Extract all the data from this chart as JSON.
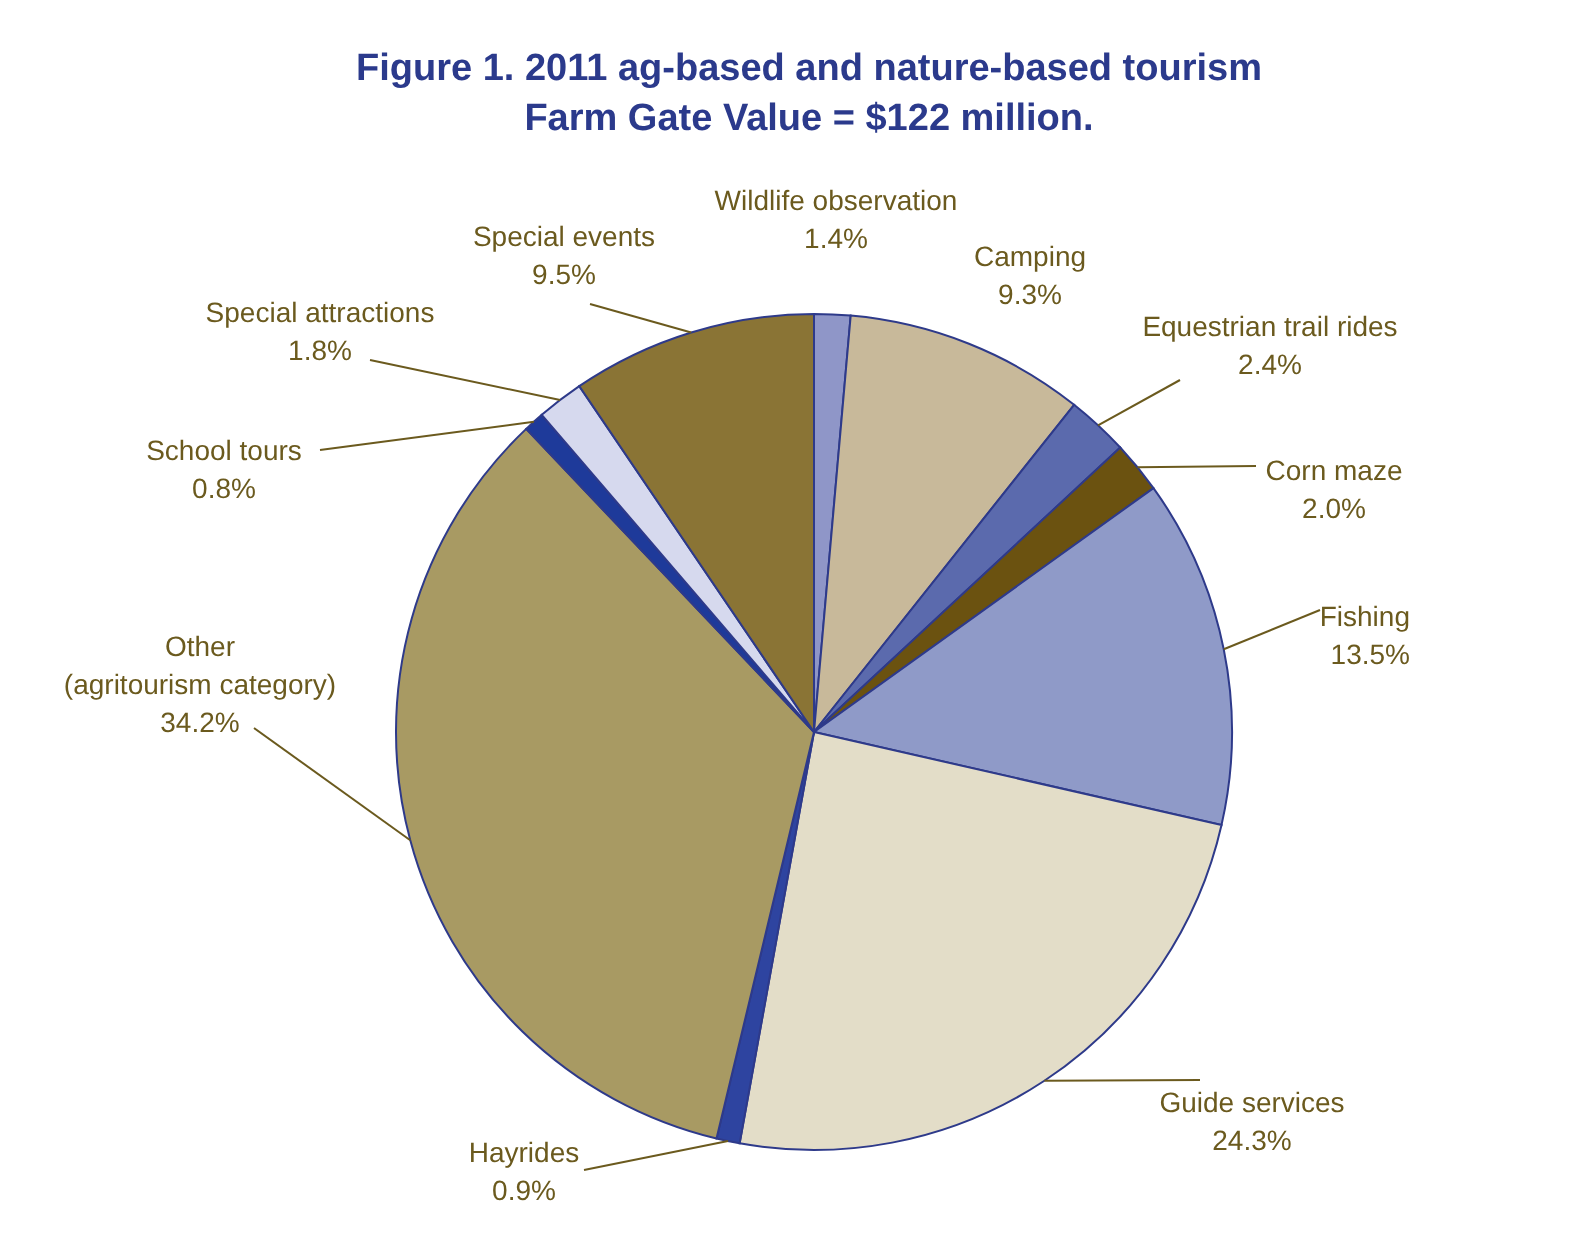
{
  "chart_data": {
    "type": "pie",
    "title": "Figure 1. 2011 ag-based and nature-based tourism",
    "subtitle": "Farm Gate Value = $122 million.",
    "categories": [
      "Wildlife observation",
      "Camping",
      "Equestrian trail rides",
      "Corn maze",
      "Fishing",
      "Guide services",
      "Hayrides",
      "Other\n(agritourism category)",
      "School tours",
      "Special attractions",
      "Special events"
    ],
    "values": [
      1.4,
      9.3,
      2.4,
      2.0,
      13.5,
      24.3,
      0.9,
      34.2,
      0.8,
      1.8,
      9.5
    ],
    "colors": [
      "#8f96c8",
      "#c8b99a",
      "#5b6aad",
      "#6b5210",
      "#8f9ac8",
      "#e3ddc8",
      "#2e44a0",
      "#a89a63",
      "#1e3a9a",
      "#d6d9ee",
      "#8a7435"
    ],
    "value_labels": [
      "1.4%",
      "9.3%",
      "2.4%",
      "2.0%",
      "13.5%",
      "24.3%",
      "0.9%",
      "34.2%",
      "0.8%",
      "1.8%",
      "9.5%"
    ]
  }
}
